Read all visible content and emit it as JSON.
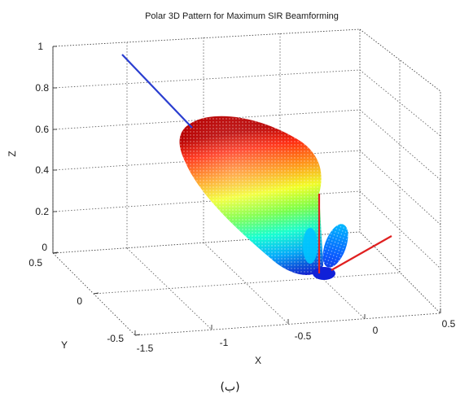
{
  "chart_data": {
    "type": "3d-polar-surface",
    "title": "Polar 3D Pattern for Maximum SIR Beamforming",
    "xlabel": "X",
    "ylabel": "Y",
    "zlabel": "Z",
    "xlim": [
      -1.5,
      0.5
    ],
    "ylim": [
      -0.5,
      0.5
    ],
    "zlim": [
      0,
      1
    ],
    "x_ticks": [
      "-1.5",
      "-1",
      "-0.5",
      "0",
      "0.5"
    ],
    "y_ticks": [
      "-0.5",
      "0",
      "0.5"
    ],
    "z_ticks": [
      "0",
      "0.2",
      "0.4",
      "0.6",
      "0.8",
      "1"
    ],
    "grid": true,
    "lines": [
      {
        "color": "#1f33c8",
        "from": [
          0,
          0,
          0
        ],
        "to": [
          -1.45,
          0.45,
          1.0
        ]
      },
      {
        "color": "#e02020",
        "from": [
          0,
          0,
          0
        ],
        "to": [
          0,
          0,
          0.3
        ]
      },
      {
        "color": "#e02020",
        "from": [
          0,
          0,
          0
        ],
        "to": [
          0.5,
          0.45,
          0
        ]
      }
    ],
    "colormap": [
      "#1a2bff",
      "#00b4ff",
      "#18ffd0",
      "#78ff50",
      "#e8ff28",
      "#ffb020",
      "#ff3a14",
      "#c00000"
    ]
  },
  "caption": "(ب)"
}
